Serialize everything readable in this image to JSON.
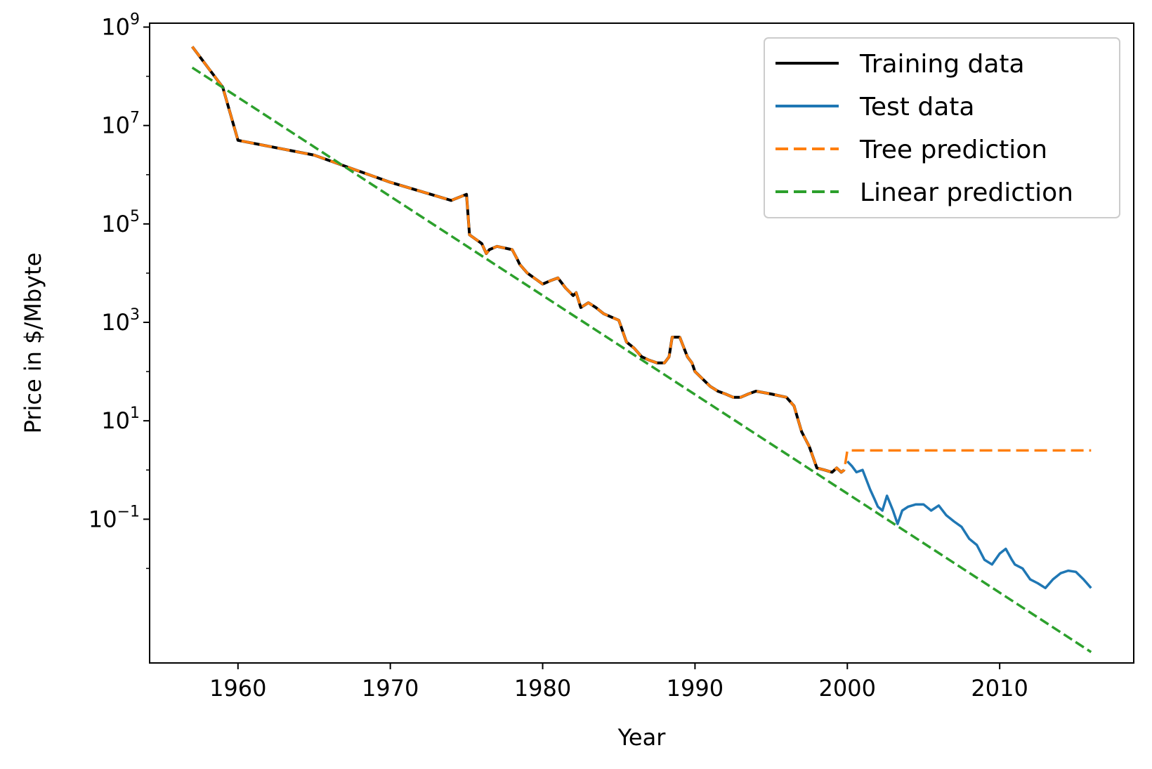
{
  "chart_data": {
    "type": "line",
    "xlabel": "Year",
    "ylabel": "Price in $/Mbyte",
    "xlim": [
      1954.2,
      2018.8
    ],
    "xscale": "linear",
    "yscale": "log",
    "ylim": [
      0.00012,
      1200000000
    ],
    "x_ticks": [
      1960,
      1970,
      1980,
      1990,
      2000,
      2010
    ],
    "y_ticks": [
      {
        "value": 0.1,
        "base": "10",
        "exp": "−1"
      },
      {
        "value": 10,
        "base": "10",
        "exp": "1"
      },
      {
        "value": 1000,
        "base": "10",
        "exp": "3"
      },
      {
        "value": 100000,
        "base": "10",
        "exp": "5"
      },
      {
        "value": 10000000,
        "base": "10",
        "exp": "7"
      },
      {
        "value": 1000000000,
        "base": "10",
        "exp": "9"
      }
    ],
    "grid": false,
    "legend_position": "top-right",
    "series": [
      {
        "name": "Training data",
        "color": "#000000",
        "style": "solid",
        "x": [
          1957,
          1959,
          1960,
          1965,
          1970,
          1974,
          1975,
          1975.2,
          1976,
          1976.3,
          1976.5,
          1977,
          1978,
          1978.3,
          1978.5,
          1979,
          1980,
          1980.5,
          1981,
          1981.5,
          1982,
          1982.2,
          1982.5,
          1983,
          1983.5,
          1984,
          1985,
          1985.5,
          1986,
          1986.5,
          1987,
          1987.5,
          1988,
          1988.3,
          1988.5,
          1989,
          1989.5,
          1989.8,
          1990,
          1991,
          1991.5,
          1992,
          1992.5,
          1993,
          1993.5,
          1994,
          1995,
          1996,
          1996.5,
          1997,
          1997.5,
          1998,
          1998.5,
          1999,
          1999.3,
          1999.6,
          1999.8
        ],
        "y": [
          400000000,
          60000000,
          5000000,
          2500000,
          700000,
          300000,
          400000,
          60000,
          40000,
          25000,
          30000,
          35000,
          30000,
          20000,
          15000,
          10000,
          6000,
          7000,
          8000,
          5000,
          3500,
          4000,
          2000,
          2500,
          2000,
          1500,
          1100,
          400,
          300,
          200,
          170,
          150,
          150,
          200,
          500,
          500,
          200,
          150,
          100,
          50,
          40,
          35,
          30,
          30,
          35,
          40,
          35,
          30,
          20,
          6,
          3,
          1.1,
          1.0,
          0.9,
          1.1,
          0.9,
          1.0
        ]
      },
      {
        "name": "Test data",
        "color": "#1f77b4",
        "style": "solid",
        "x": [
          2000,
          2000.3,
          2000.6,
          2001,
          2001.5,
          2001.8,
          2002,
          2002.3,
          2002.6,
          2003,
          2003.3,
          2003.6,
          2004,
          2004.5,
          2005,
          2005.5,
          2006,
          2006.5,
          2007,
          2007.5,
          2008,
          2008.5,
          2009,
          2009.5,
          2010,
          2010.4,
          2010.8,
          2011,
          2011.5,
          2012,
          2012.5,
          2013,
          2013.5,
          2014,
          2014.5,
          2015,
          2015.5,
          2016
        ],
        "y": [
          1.5,
          1.2,
          0.9,
          1.0,
          0.4,
          0.25,
          0.18,
          0.15,
          0.3,
          0.15,
          0.08,
          0.15,
          0.18,
          0.2,
          0.2,
          0.15,
          0.19,
          0.12,
          0.09,
          0.07,
          0.04,
          0.03,
          0.015,
          0.012,
          0.02,
          0.025,
          0.015,
          0.012,
          0.01,
          0.006,
          0.005,
          0.004,
          0.006,
          0.008,
          0.009,
          0.0085,
          0.006,
          0.004
        ]
      },
      {
        "name": "Tree prediction",
        "color": "#ff7f0e",
        "style": "dashed",
        "x": [
          1957,
          1959,
          1960,
          1965,
          1970,
          1974,
          1975,
          1975.2,
          1976,
          1976.3,
          1976.5,
          1977,
          1978,
          1978.3,
          1978.5,
          1979,
          1980,
          1980.5,
          1981,
          1981.5,
          1982,
          1982.2,
          1982.5,
          1983,
          1983.5,
          1984,
          1985,
          1985.5,
          1986,
          1986.5,
          1987,
          1987.5,
          1988,
          1988.3,
          1988.5,
          1989,
          1989.5,
          1989.8,
          1990,
          1991,
          1991.5,
          1992,
          1992.5,
          1993,
          1993.5,
          1994,
          1995,
          1996,
          1996.5,
          1997,
          1997.5,
          1998,
          1998.5,
          1999,
          1999.3,
          1999.6,
          1999.8,
          2000,
          2016
        ],
        "y": [
          400000000,
          60000000,
          5000000,
          2500000,
          700000,
          300000,
          400000,
          60000,
          40000,
          25000,
          30000,
          35000,
          30000,
          20000,
          15000,
          10000,
          6000,
          7000,
          8000,
          5000,
          3500,
          4000,
          2000,
          2500,
          2000,
          1500,
          1100,
          400,
          300,
          200,
          170,
          150,
          150,
          200,
          500,
          500,
          200,
          150,
          100,
          50,
          40,
          35,
          30,
          30,
          35,
          40,
          35,
          30,
          20,
          6,
          3,
          1.1,
          1.0,
          0.9,
          1.1,
          0.9,
          1.0,
          2.5,
          2.5
        ]
      },
      {
        "name": "Linear prediction",
        "color": "#2ca02c",
        "style": "dashed",
        "x": [
          1957,
          2016
        ],
        "y": [
          150000000,
          0.0002
        ]
      }
    ]
  }
}
